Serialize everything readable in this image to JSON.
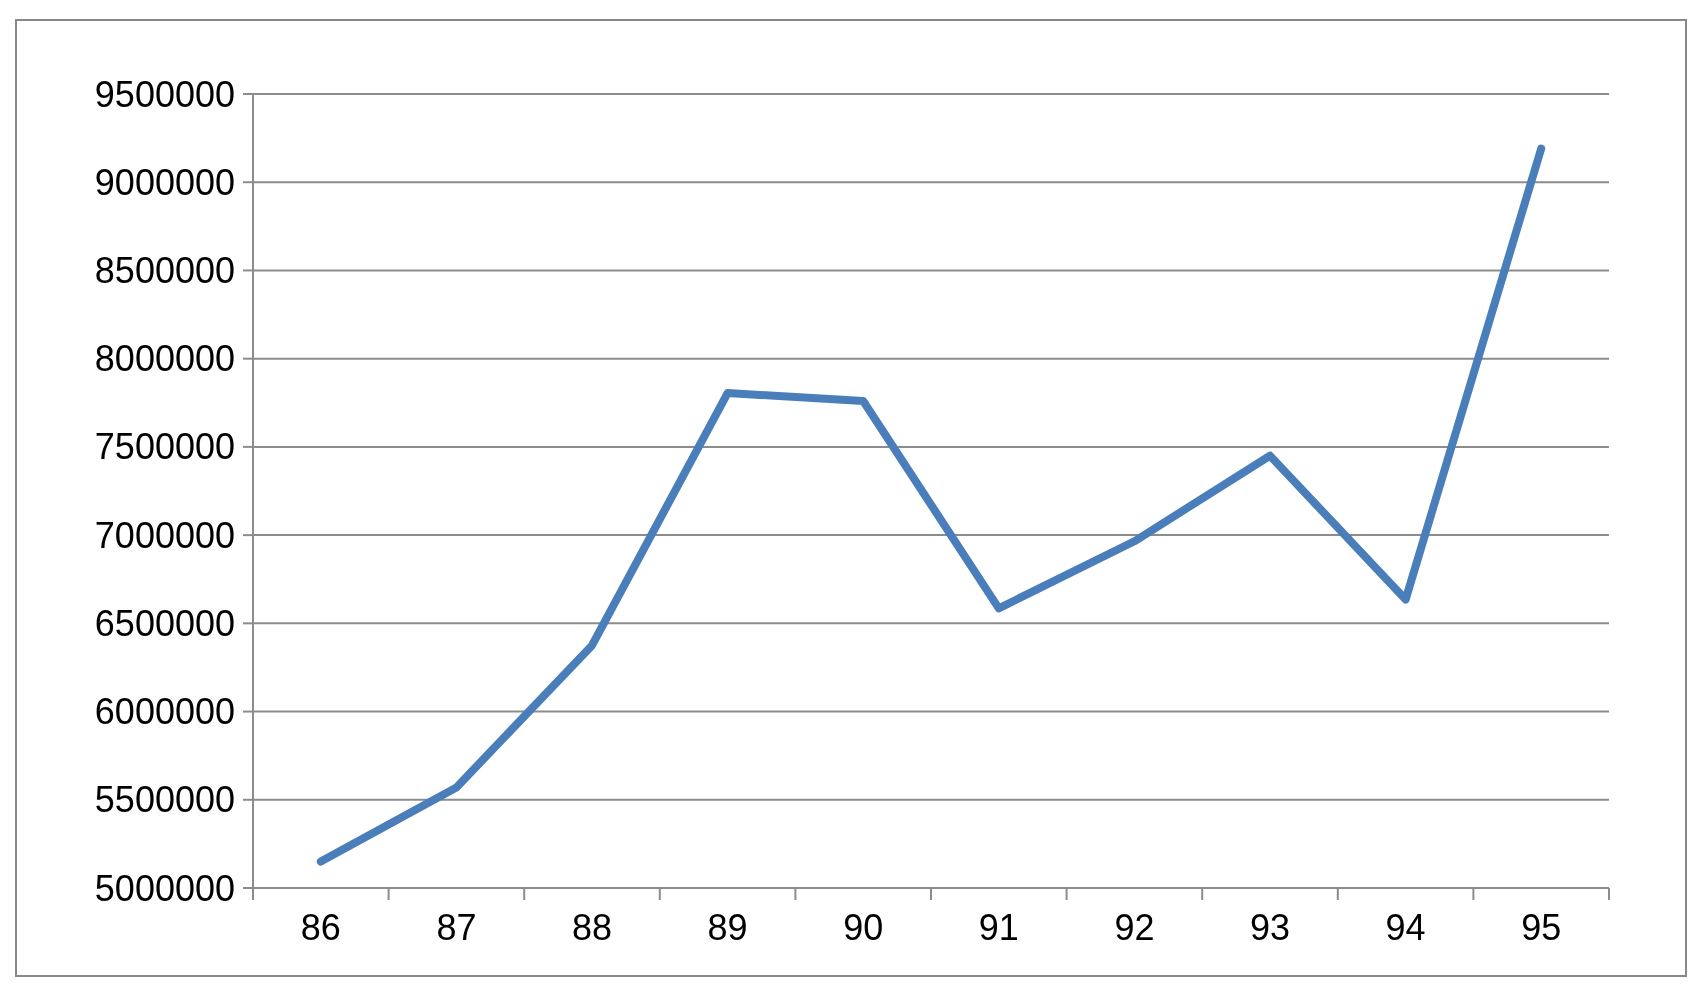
{
  "chart_data": {
    "type": "line",
    "categories": [
      "86",
      "87",
      "88",
      "89",
      "90",
      "91",
      "92",
      "93",
      "94",
      "95"
    ],
    "series": [
      {
        "color": "#4a7ebb",
        "values": [
          5150000,
          5570000,
          6375000,
          7805000,
          7760000,
          6585000,
          6965000,
          7450000,
          6635000,
          9190000
        ]
      }
    ],
    "ylim": [
      5000000,
      9500000
    ],
    "yticks": [
      5000000,
      5500000,
      6000000,
      6500000,
      7000000,
      7500000,
      8000000,
      8500000,
      9000000,
      9500000
    ],
    "grid": "y",
    "marker": "none",
    "line_style": "solid"
  }
}
